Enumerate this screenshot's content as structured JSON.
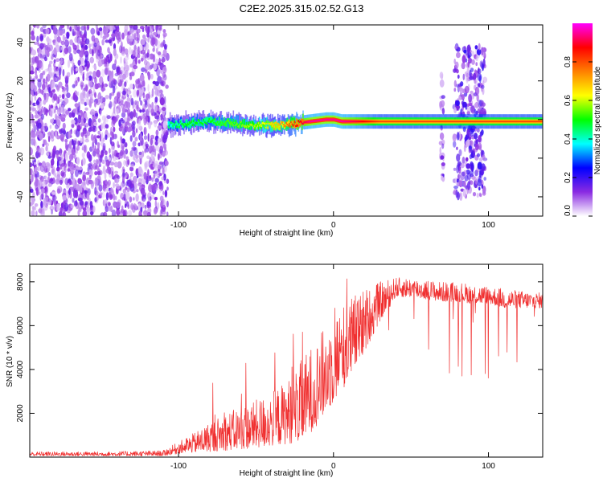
{
  "figure_title": "C2E2.2025.315.02.52.G13",
  "chart_data": [
    {
      "type": "heatmap",
      "title": "C2E2.2025.315.02.52.G13",
      "xlabel": "Height of straight line (km)",
      "ylabel": "Frequency (Hz)",
      "xlim": [
        -196,
        135
      ],
      "ylim": [
        -50,
        49
      ],
      "x_ticks": [
        -100,
        0,
        100
      ],
      "x_tick_labels": [
        "-100",
        "0",
        "100"
      ],
      "y_ticks": [
        -40,
        -20,
        0,
        20,
        40
      ],
      "y_tick_labels": [
        "-40",
        "-20",
        "0",
        "20",
        "40"
      ],
      "colorbar": {
        "label": "Normalized spectral amplitude",
        "range": [
          0,
          1
        ],
        "ticks": [
          0,
          0.2,
          0.4,
          0.6,
          0.8
        ],
        "tick_labels": [
          "0.0",
          "0.2",
          "0.4",
          "0.6",
          "0.8"
        ],
        "colors": [
          "#ffffff",
          "#8a2be2",
          "#0000ff",
          "#00ffff",
          "#00ff00",
          "#ffff00",
          "#ff8000",
          "#ff0000",
          "#ff00ff"
        ]
      },
      "carrier_line": {
        "x": [
          -107,
          -95,
          -80,
          -65,
          -50,
          -35,
          -25,
          -15,
          -5,
          0,
          5,
          15,
          30,
          60,
          100,
          135
        ],
        "freq_hz": [
          -3,
          -2,
          -1,
          -2,
          -3,
          -3,
          -2,
          -1,
          0,
          0,
          -1,
          -1,
          -1,
          -1,
          -1,
          -1
        ],
        "amplitude": [
          0.45,
          0.5,
          0.5,
          0.55,
          0.6,
          0.7,
          0.85,
          0.95,
          0.95,
          0.95,
          0.95,
          0.9,
          0.8,
          0.8,
          0.8,
          0.8
        ]
      },
      "noise_regions": [
        {
          "x_range": [
            -196,
            -107
          ],
          "freq_range": [
            -50,
            49
          ],
          "amplitude": 0.15
        },
        {
          "x_range": [
            69,
            71
          ],
          "freq_range": [
            -33,
            30
          ],
          "amplitude": 0.2
        },
        {
          "x_range": [
            78,
            98
          ],
          "freq_range": [
            -40,
            38
          ],
          "amplitude": 0.2
        }
      ]
    },
    {
      "type": "line",
      "title": "",
      "xlabel": "Height of straight line (km)",
      "ylabel": "SNR (10 * v/v)",
      "xlim": [
        -196,
        135
      ],
      "ylim": [
        0,
        8800
      ],
      "x_ticks": [
        -100,
        0,
        100
      ],
      "x_tick_labels": [
        "-100",
        "0",
        "100"
      ],
      "y_ticks": [
        2000,
        4000,
        6000,
        8000
      ],
      "y_tick_labels": [
        "2000",
        "4000",
        "6000",
        "8000"
      ],
      "series": [
        {
          "name": "SNR",
          "color": "#f03030",
          "x": [
            -196,
            -150,
            -110,
            -100,
            -90,
            -80,
            -70,
            -60,
            -50,
            -40,
            -30,
            -20,
            -10,
            0,
            10,
            20,
            30,
            40,
            50,
            60,
            70,
            80,
            90,
            100,
            110,
            120,
            135
          ],
          "y_low": [
            50,
            50,
            50,
            150,
            200,
            250,
            300,
            350,
            400,
            500,
            600,
            700,
            1500,
            2500,
            3500,
            4800,
            6200,
            7300,
            7300,
            7200,
            7100,
            7100,
            7000,
            7000,
            6800,
            6800,
            6800
          ],
          "y_high": [
            250,
            250,
            300,
            700,
            1100,
            1600,
            2000,
            2300,
            2600,
            3000,
            3500,
            4500,
            5500,
            6500,
            7300,
            7700,
            8000,
            8200,
            8200,
            8100,
            8000,
            8000,
            7900,
            7800,
            7700,
            7600,
            7500
          ]
        }
      ]
    }
  ]
}
